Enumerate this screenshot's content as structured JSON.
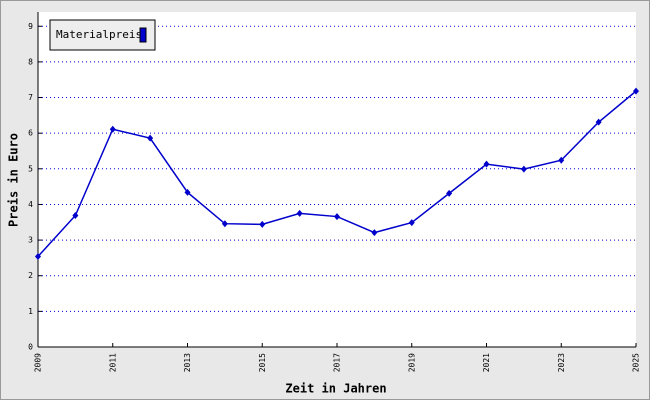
{
  "chart_data": {
    "type": "line",
    "xlabel": "Zeit in Jahren",
    "ylabel": "Preis in Euro",
    "x": [
      2009,
      2010,
      2011,
      2012,
      2013,
      2014,
      2015,
      2016,
      2017,
      2018,
      2019,
      2020,
      2021,
      2022,
      2023,
      2024,
      2025
    ],
    "series": [
      {
        "name": "Materialpreis",
        "color": "#0000cc",
        "values": [
          2.54,
          3.69,
          6.11,
          5.86,
          4.34,
          3.46,
          3.44,
          3.75,
          3.66,
          3.21,
          3.49,
          4.31,
          5.13,
          4.99,
          5.24,
          6.31,
          7.18
        ]
      }
    ],
    "xlim": [
      2009,
      2025
    ],
    "xticks": [
      2009,
      2011,
      2013,
      2015,
      2017,
      2019,
      2021,
      2023,
      2025
    ],
    "ylim": [
      0,
      9.4
    ],
    "yticks": [
      0,
      1,
      2,
      3,
      4,
      5,
      6,
      7,
      8,
      9
    ],
    "grid": true,
    "legend": "top-left"
  }
}
